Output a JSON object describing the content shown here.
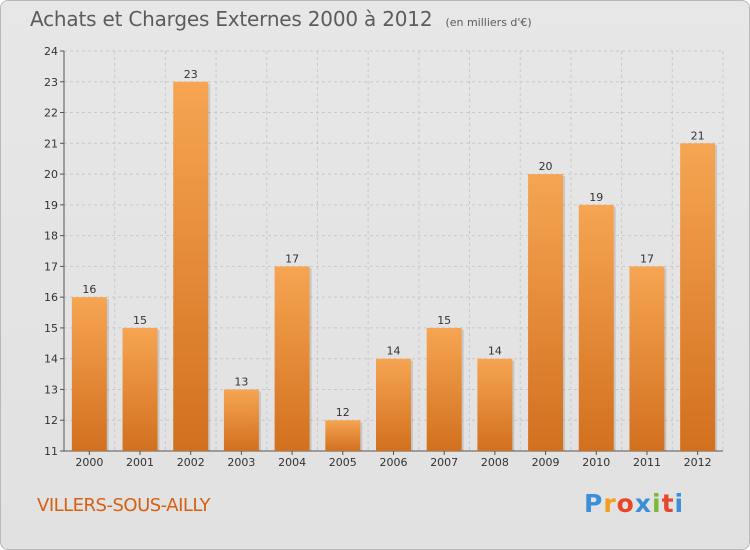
{
  "header": {
    "title": "Achats et Charges Externes 2000 à 2012",
    "subtitle": "(en milliers d'€)"
  },
  "footer": {
    "location": "VILLERS-SOUS-AILLY",
    "brand": [
      "P",
      "r",
      "o",
      "x",
      "i",
      "t",
      "i"
    ],
    "brand_colors": [
      "#3a8fd8",
      "#f39c1f",
      "#e8462a",
      "#3a8fd8",
      "#7cb83a",
      "#e8462a",
      "#3a8fd8"
    ]
  },
  "colors": {
    "bar_light": "#f6a552",
    "bar_dark": "#d2701e",
    "location_text": "#d75f10"
  },
  "chart_data": {
    "type": "bar",
    "title": "Achats et Charges Externes 2000 à 2012",
    "subtitle": "(en milliers d'€)",
    "categories": [
      "2000",
      "2001",
      "2002",
      "2003",
      "2004",
      "2005",
      "2006",
      "2007",
      "2008",
      "2009",
      "2010",
      "2011",
      "2012"
    ],
    "values": [
      16,
      15,
      23,
      13,
      17,
      12,
      14,
      15,
      14,
      20,
      19,
      17,
      21
    ],
    "data_labels": [
      "16",
      "15",
      "23",
      "13",
      "17",
      "12",
      "14",
      "15",
      "14",
      "20",
      "19",
      "17",
      "21"
    ],
    "ylim": [
      11,
      24
    ],
    "yticks": [
      "11",
      "12",
      "13",
      "14",
      "15",
      "16",
      "17",
      "18",
      "19",
      "20",
      "21",
      "22",
      "23",
      "24"
    ],
    "grid": true,
    "xlabel": "",
    "ylabel": ""
  }
}
